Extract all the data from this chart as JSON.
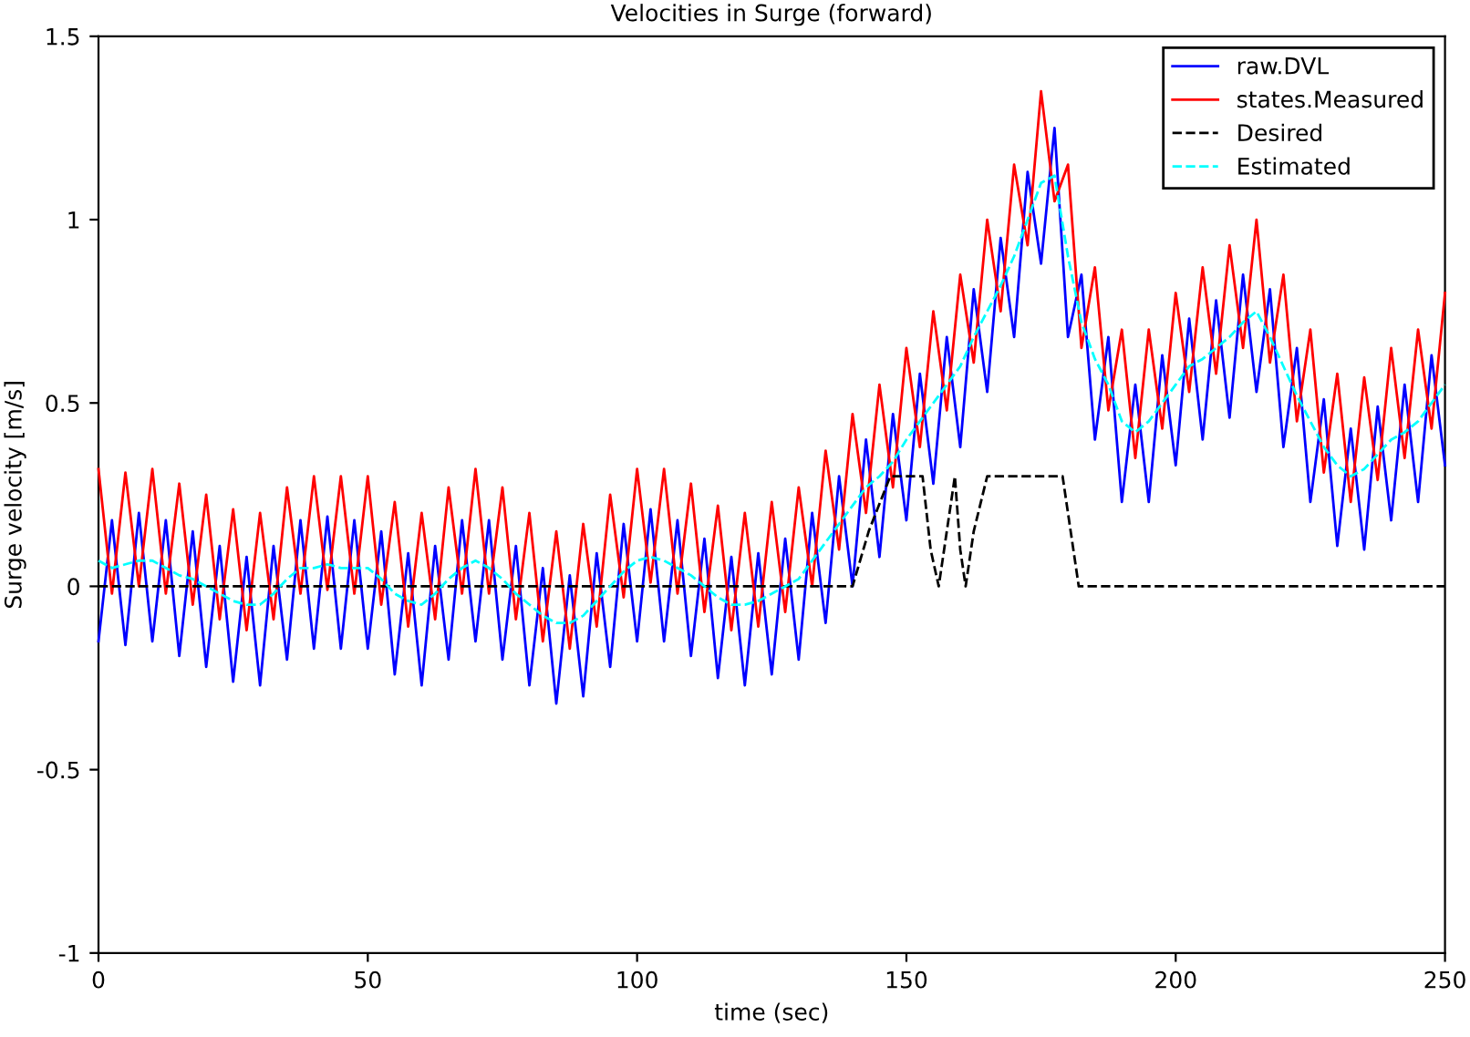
{
  "chart_data": {
    "type": "line",
    "title": "Velocities in Surge (forward)",
    "xlabel": "time (sec)",
    "ylabel": "Surge velocity [m/s]",
    "xlim": [
      0,
      250
    ],
    "xticks": [
      0,
      50,
      100,
      150,
      200,
      250
    ],
    "ylim": [
      -1,
      1.5
    ],
    "yticks": [
      -1,
      -0.5,
      0,
      0.5,
      1,
      1.5
    ],
    "grid": false,
    "legend": "top right",
    "x": [
      0,
      2.5,
      5,
      7.5,
      10,
      12.5,
      15,
      17.5,
      20,
      22.5,
      25,
      27.5,
      30,
      32.5,
      35,
      37.5,
      40,
      42.5,
      45,
      47.5,
      50,
      52.5,
      55,
      57.5,
      60,
      62.5,
      65,
      67.5,
      70,
      72.5,
      75,
      77.5,
      80,
      82.5,
      85,
      87.5,
      90,
      92.5,
      95,
      97.5,
      100,
      102.5,
      105,
      107.5,
      110,
      112.5,
      115,
      117.5,
      120,
      122.5,
      125,
      127.5,
      130,
      132.5,
      135,
      137.5,
      140,
      142.5,
      145,
      147.5,
      150,
      152.5,
      155,
      157.5,
      160,
      162.5,
      165,
      167.5,
      170,
      172.5,
      175,
      177.5,
      180,
      182.5,
      185,
      187.5,
      190,
      192.5,
      195,
      197.5,
      200,
      202.5,
      205,
      207.5,
      210,
      212.5,
      215,
      217.5,
      220,
      222.5,
      225,
      227.5,
      230,
      232.5,
      235,
      237.5,
      240,
      242.5,
      245,
      247.5,
      250
    ],
    "series": [
      {
        "name": "raw.DVL",
        "color": "#0000ff",
        "line_style": "solid",
        "values": [
          -0.15,
          0.18,
          -0.16,
          0.2,
          -0.15,
          0.18,
          -0.19,
          0.15,
          -0.22,
          0.11,
          -0.26,
          0.08,
          -0.27,
          0.11,
          -0.2,
          0.18,
          -0.17,
          0.19,
          -0.17,
          0.18,
          -0.17,
          0.15,
          -0.24,
          0.09,
          -0.27,
          0.11,
          -0.2,
          0.18,
          -0.15,
          0.18,
          -0.2,
          0.11,
          -0.27,
          0.05,
          -0.32,
          0.03,
          -0.3,
          0.09,
          -0.22,
          0.17,
          -0.15,
          0.21,
          -0.15,
          0.18,
          -0.19,
          0.13,
          -0.25,
          0.08,
          -0.27,
          0.09,
          -0.24,
          0.13,
          -0.2,
          0.2,
          -0.1,
          0.3,
          0.0,
          0.4,
          0.08,
          0.47,
          0.18,
          0.58,
          0.28,
          0.68,
          0.38,
          0.81,
          0.53,
          0.95,
          0.68,
          1.13,
          0.88,
          1.25,
          0.68,
          0.85,
          0.4,
          0.68,
          0.23,
          0.55,
          0.23,
          0.63,
          0.33,
          0.73,
          0.4,
          0.78,
          0.46,
          0.85,
          0.53,
          0.81,
          0.38,
          0.65,
          0.23,
          0.51,
          0.11,
          0.43,
          0.1,
          0.49,
          0.18,
          0.55,
          0.23,
          0.63,
          0.33
        ]
      },
      {
        "name": "states.Measured",
        "color": "#ff0000",
        "line_style": "solid",
        "values": [
          0.32,
          -0.02,
          0.31,
          0.0,
          0.32,
          -0.02,
          0.28,
          -0.05,
          0.25,
          -0.09,
          0.21,
          -0.12,
          0.2,
          -0.09,
          0.27,
          -0.02,
          0.3,
          -0.01,
          0.3,
          -0.02,
          0.3,
          -0.05,
          0.23,
          -0.11,
          0.2,
          -0.09,
          0.27,
          -0.02,
          0.32,
          -0.02,
          0.27,
          -0.09,
          0.2,
          -0.15,
          0.15,
          -0.17,
          0.17,
          -0.11,
          0.25,
          -0.03,
          0.32,
          0.01,
          0.32,
          -0.02,
          0.28,
          -0.07,
          0.22,
          -0.12,
          0.2,
          -0.11,
          0.23,
          -0.07,
          0.27,
          0.0,
          0.37,
          0.1,
          0.47,
          0.2,
          0.55,
          0.27,
          0.65,
          0.38,
          0.75,
          0.48,
          0.85,
          0.61,
          1.0,
          0.75,
          1.15,
          0.93,
          1.35,
          1.05,
          1.15,
          0.65,
          0.87,
          0.48,
          0.7,
          0.35,
          0.7,
          0.43,
          0.8,
          0.53,
          0.87,
          0.58,
          0.93,
          0.65,
          1.0,
          0.61,
          0.85,
          0.45,
          0.7,
          0.31,
          0.58,
          0.23,
          0.57,
          0.29,
          0.65,
          0.35,
          0.7,
          0.43,
          0.8
        ]
      },
      {
        "name": "Desired",
        "color": "#000000",
        "line_style": "dashed",
        "x": [
          0,
          140,
          143,
          147,
          153,
          154.5,
          156,
          157.5,
          159,
          160,
          161,
          162.5,
          165,
          179,
          182,
          250
        ],
        "values": [
          0,
          0,
          0.15,
          0.3,
          0.3,
          0.1,
          0,
          0.15,
          0.3,
          0.1,
          0,
          0.15,
          0.3,
          0.3,
          0,
          0
        ]
      },
      {
        "name": "Estimated",
        "color": "#00ffff",
        "line_style": "dashed",
        "values": [
          0.07,
          0.05,
          0.06,
          0.07,
          0.07,
          0.05,
          0.03,
          0.02,
          0.0,
          -0.02,
          -0.04,
          -0.05,
          -0.05,
          -0.02,
          0.02,
          0.05,
          0.05,
          0.06,
          0.05,
          0.05,
          0.05,
          0.02,
          -0.02,
          -0.04,
          -0.05,
          -0.02,
          0.02,
          0.05,
          0.07,
          0.05,
          0.02,
          -0.02,
          -0.05,
          -0.08,
          -0.1,
          -0.1,
          -0.08,
          -0.04,
          0.0,
          0.04,
          0.07,
          0.08,
          0.07,
          0.05,
          0.03,
          0.0,
          -0.03,
          -0.05,
          -0.05,
          -0.04,
          -0.02,
          0.0,
          0.02,
          0.07,
          0.12,
          0.17,
          0.22,
          0.27,
          0.3,
          0.34,
          0.4,
          0.45,
          0.5,
          0.55,
          0.6,
          0.68,
          0.75,
          0.82,
          0.9,
          1.0,
          1.1,
          1.12,
          0.9,
          0.72,
          0.62,
          0.55,
          0.45,
          0.42,
          0.45,
          0.5,
          0.55,
          0.6,
          0.62,
          0.65,
          0.68,
          0.72,
          0.75,
          0.68,
          0.6,
          0.52,
          0.45,
          0.38,
          0.33,
          0.3,
          0.32,
          0.36,
          0.4,
          0.42,
          0.45,
          0.5,
          0.55
        ]
      }
    ]
  }
}
